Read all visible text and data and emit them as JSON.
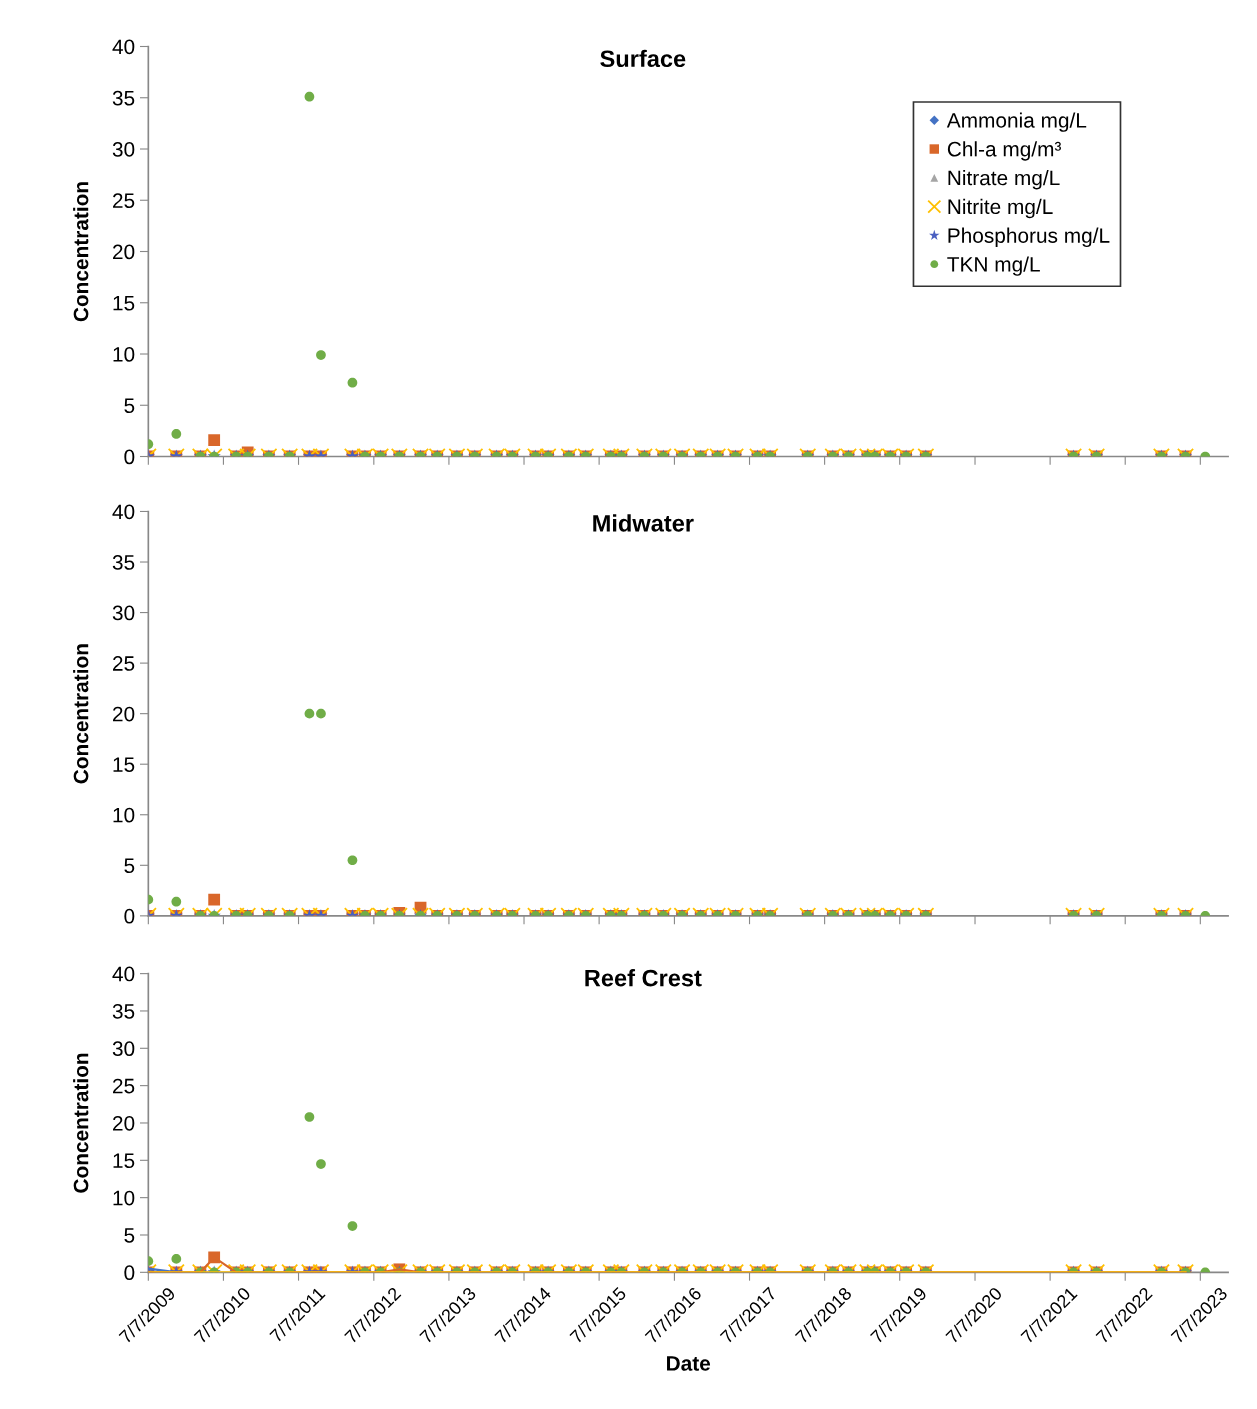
{
  "chart_data": [
    {
      "type": "scatter",
      "title": "Surface",
      "ylabel": "Concentration",
      "legend": "top right",
      "grid": false,
      "tick_labels": "y",
      "x": [
        "2009-07-07",
        "2009-11-20",
        "2010-03-17",
        "2010-05-23",
        "2010-09-07",
        "2010-11-02",
        "2011-02-13",
        "2011-05-25",
        "2011-08-29",
        "2011-10-24",
        "2012-03-25",
        "2012-05-25",
        "2012-08-09",
        "2012-11-08",
        "2013-02-19",
        "2013-05-11",
        "2013-08-15",
        "2013-11-10",
        "2014-02-24",
        "2014-05-11",
        "2014-09-01",
        "2014-11-01",
        "2015-02-10",
        "2015-05-03",
        "2015-09-02",
        "2015-10-23",
        "2016-02-12",
        "2016-05-14",
        "2016-08-13",
        "2016-11-12",
        "2017-02-02",
        "2017-04-30",
        "2017-08-15",
        "2017-10-15",
        "2018-04-16",
        "2018-08-16",
        "2018-10-31",
        "2019-01-31",
        "2019-03-08",
        "2019-05-22",
        "2019-08-07",
        "2019-11-11",
        "2021-10-29",
        "2022-02-18",
        "2022-12-30",
        "2023-04-26",
        "2023-07-31"
      ],
      "xlim": [
        "2009-07-07",
        "2023-11-19"
      ],
      "xticks": [
        {
          "value": "2009-07-07",
          "label": null
        },
        {
          "value": "2010-07-07",
          "label": null
        },
        {
          "value": "2011-07-07",
          "label": null
        },
        {
          "value": "2012-07-07",
          "label": null
        },
        {
          "value": "2013-07-07",
          "label": null
        },
        {
          "value": "2014-07-07",
          "label": null
        },
        {
          "value": "2015-07-07",
          "label": null
        },
        {
          "value": "2016-07-07",
          "label": null
        },
        {
          "value": "2017-07-07",
          "label": null
        },
        {
          "value": "2018-07-07",
          "label": null
        },
        {
          "value": "2019-07-07",
          "label": null
        },
        {
          "value": "2020-07-07",
          "label": null
        },
        {
          "value": "2021-07-07",
          "label": null
        },
        {
          "value": "2022-07-07",
          "label": null
        },
        {
          "value": "2023-07-07",
          "label": null
        }
      ],
      "ylim": [
        0,
        40
      ],
      "yticks": [
        0,
        5,
        10,
        15,
        20,
        25,
        30,
        35,
        40
      ],
      "series": [
        {
          "name": "Ammonia mg/L",
          "color": "#4472c4",
          "marker": "diamond",
          "values": [
            null,
            null,
            null,
            null,
            null,
            null,
            null,
            null,
            null,
            null,
            null,
            null,
            null,
            null,
            null,
            null,
            null,
            null,
            null,
            null,
            null,
            null,
            null,
            null,
            null,
            null,
            null,
            null,
            null,
            null,
            null,
            null,
            null,
            null,
            null,
            null,
            null,
            null,
            null,
            null,
            null,
            null,
            null,
            null,
            null,
            null,
            null
          ]
        },
        {
          "name": "Chl-a mg/m³",
          "color": "#d9672a",
          "marker": "square",
          "values": [
            0,
            0,
            0,
            1.6,
            0,
            0.4,
            0,
            0,
            0,
            0,
            0,
            0,
            0,
            0,
            0,
            0,
            0,
            0,
            0,
            0,
            0,
            0,
            0,
            0,
            0,
            0,
            0,
            0,
            0,
            0,
            0,
            0,
            0,
            0,
            0,
            0,
            0,
            0,
            0,
            0,
            0,
            0,
            0,
            0,
            0,
            0,
            null
          ]
        },
        {
          "name": "Nitrate mg/L",
          "color": "#a5a5a5",
          "marker": "triangle",
          "values": [
            null,
            null,
            null,
            null,
            null,
            null,
            null,
            null,
            null,
            null,
            null,
            null,
            null,
            null,
            null,
            null,
            null,
            null,
            null,
            null,
            null,
            null,
            null,
            null,
            null,
            null,
            null,
            null,
            null,
            null,
            null,
            null,
            null,
            null,
            null,
            null,
            null,
            null,
            null,
            null,
            null,
            null,
            null,
            null,
            null,
            null,
            null
          ]
        },
        {
          "name": "Nitrite mg/L",
          "color": "#ffc000",
          "marker": "cross",
          "values": [
            0,
            0,
            0,
            0,
            0,
            0,
            0,
            0,
            0,
            0,
            0,
            0,
            0,
            0,
            0,
            0,
            0,
            0,
            0,
            0,
            0,
            0,
            0,
            0,
            0,
            0,
            0,
            0,
            0,
            0,
            0,
            0,
            0,
            0,
            0,
            0,
            0,
            0,
            0,
            0,
            0,
            0,
            0,
            0,
            0,
            0,
            null
          ]
        },
        {
          "name": "Phosphorus mg/L",
          "color": "#4a5fc1",
          "marker": "star",
          "values": [
            0,
            0,
            0,
            0,
            0,
            0,
            0,
            0,
            0,
            0,
            0,
            0,
            0,
            0,
            0,
            0,
            0,
            0,
            0,
            0,
            0,
            0,
            0,
            0,
            0,
            0,
            0,
            0,
            0,
            0,
            0,
            0,
            0,
            0,
            0,
            0,
            0,
            0,
            0,
            0,
            0,
            0,
            0,
            0,
            0,
            0,
            null
          ]
        },
        {
          "name": "TKN mg/L",
          "color": "#70ad47",
          "marker": "circle",
          "values": [
            1.2,
            2.2,
            0,
            0,
            0,
            0,
            0,
            0,
            35.1,
            9.9,
            7.2,
            0,
            0,
            0,
            0,
            0,
            0,
            0,
            0,
            0,
            0,
            0,
            0,
            0,
            0,
            0,
            0,
            0,
            0,
            0,
            0,
            0,
            0,
            0,
            0,
            0,
            0,
            0,
            0,
            0,
            0,
            0,
            0,
            0,
            0,
            0,
            0
          ]
        }
      ]
    },
    {
      "type": "scatter",
      "title": "Midwater",
      "ylabel": "Concentration",
      "legend": false,
      "grid": false,
      "tick_labels": "y",
      "x": [
        "2009-07-07",
        "2009-11-20",
        "2010-03-17",
        "2010-05-23",
        "2010-09-07",
        "2010-11-02",
        "2011-02-13",
        "2011-05-25",
        "2011-08-29",
        "2011-10-24",
        "2012-03-25",
        "2012-05-25",
        "2012-08-09",
        "2012-11-08",
        "2013-02-19",
        "2013-05-11",
        "2013-08-15",
        "2013-11-10",
        "2014-02-24",
        "2014-05-11",
        "2014-09-01",
        "2014-11-01",
        "2015-02-10",
        "2015-05-03",
        "2015-09-02",
        "2015-10-23",
        "2016-02-12",
        "2016-05-14",
        "2016-08-13",
        "2016-11-12",
        "2017-02-02",
        "2017-04-30",
        "2017-08-15",
        "2017-10-15",
        "2018-04-16",
        "2018-08-16",
        "2018-10-31",
        "2019-01-31",
        "2019-03-08",
        "2019-05-22",
        "2019-08-07",
        "2019-11-11",
        "2021-10-29",
        "2022-02-18",
        "2022-12-30",
        "2023-04-26",
        "2023-07-31"
      ],
      "xlim": [
        "2009-07-07",
        "2023-11-19"
      ],
      "xticks": [
        {
          "value": "2009-07-07",
          "label": null
        },
        {
          "value": "2010-07-07",
          "label": null
        },
        {
          "value": "2011-07-07",
          "label": null
        },
        {
          "value": "2012-07-07",
          "label": null
        },
        {
          "value": "2013-07-07",
          "label": null
        },
        {
          "value": "2014-07-07",
          "label": null
        },
        {
          "value": "2015-07-07",
          "label": null
        },
        {
          "value": "2016-07-07",
          "label": null
        },
        {
          "value": "2017-07-07",
          "label": null
        },
        {
          "value": "2018-07-07",
          "label": null
        },
        {
          "value": "2019-07-07",
          "label": null
        },
        {
          "value": "2020-07-07",
          "label": null
        },
        {
          "value": "2021-07-07",
          "label": null
        },
        {
          "value": "2022-07-07",
          "label": null
        },
        {
          "value": "2023-07-07",
          "label": null
        }
      ],
      "ylim": [
        0,
        40
      ],
      "yticks": [
        0,
        5,
        10,
        15,
        20,
        25,
        30,
        35,
        40
      ],
      "series": [
        {
          "color": "#d9672a",
          "marker": "square",
          "values": [
            0,
            0,
            0,
            1.6,
            0,
            0,
            0,
            0,
            0,
            0,
            0,
            0,
            0,
            0.3,
            0.8,
            0,
            0,
            0,
            0,
            0,
            0,
            0,
            0,
            0,
            0,
            0,
            0,
            0,
            0,
            0,
            0,
            0,
            0,
            0,
            0,
            0,
            0,
            0,
            0,
            0,
            0,
            0,
            0,
            0,
            0,
            0,
            null
          ]
        },
        {
          "color": "#ffc000",
          "marker": "cross",
          "values": [
            0,
            0,
            0,
            0,
            0,
            0,
            0,
            0,
            0,
            0,
            0,
            0,
            0,
            0,
            0,
            0,
            0,
            0,
            0,
            0,
            0,
            0,
            0,
            0,
            0,
            0,
            0,
            0,
            0,
            0,
            0,
            0,
            0,
            0,
            0,
            0,
            0,
            0,
            0,
            0,
            0,
            0,
            0,
            0,
            0,
            0,
            null
          ]
        },
        {
          "color": "#4a5fc1",
          "marker": "star",
          "values": [
            0,
            0,
            0,
            0,
            0,
            0,
            0,
            0,
            0,
            0,
            0,
            0,
            0,
            0,
            0,
            0,
            0,
            0,
            0,
            0,
            0,
            0,
            0,
            0,
            0,
            0,
            0,
            0,
            0,
            0,
            0,
            0,
            0,
            0,
            0,
            0,
            0,
            0,
            0,
            0,
            0,
            0,
            0,
            0,
            0,
            0,
            null
          ]
        },
        {
          "color": "#70ad47",
          "marker": "circle",
          "values": [
            1.6,
            1.4,
            0,
            0,
            0,
            0,
            0,
            0,
            20,
            20,
            5.5,
            0,
            0,
            0,
            0,
            0,
            0,
            0,
            0,
            0,
            0,
            0,
            0,
            0,
            0,
            0,
            0,
            0,
            0,
            0,
            0,
            0,
            0,
            0,
            0,
            0,
            0,
            0,
            0,
            0,
            0,
            0,
            0,
            0,
            0,
            0,
            0
          ]
        }
      ]
    },
    {
      "type": "scatter",
      "title": "Reef Crest",
      "ylabel": "Concentration",
      "xlabel": "Date",
      "legend": false,
      "grid": false,
      "x": [
        "2009-07-07",
        "2009-11-20",
        "2010-03-17",
        "2010-05-23",
        "2010-09-07",
        "2010-11-02",
        "2011-02-13",
        "2011-05-25",
        "2011-08-29",
        "2011-10-24",
        "2012-03-25",
        "2012-05-25",
        "2012-08-09",
        "2012-11-08",
        "2013-02-19",
        "2013-05-11",
        "2013-08-15",
        "2013-11-10",
        "2014-02-24",
        "2014-05-11",
        "2014-09-01",
        "2014-11-01",
        "2015-02-10",
        "2015-05-03",
        "2015-09-02",
        "2015-10-23",
        "2016-02-12",
        "2016-05-14",
        "2016-08-13",
        "2016-11-12",
        "2017-02-02",
        "2017-04-30",
        "2017-08-15",
        "2017-10-15",
        "2018-04-16",
        "2018-08-16",
        "2018-10-31",
        "2019-01-31",
        "2019-03-08",
        "2019-05-22",
        "2019-08-07",
        "2019-11-11",
        "2021-10-29",
        "2022-02-18",
        "2022-12-30",
        "2023-04-26",
        "2023-07-31"
      ],
      "xlim": [
        "2009-07-07",
        "2023-11-19"
      ],
      "xticks": [
        {
          "value": "2009-07-07",
          "label": "7/7/2009"
        },
        {
          "value": "2010-07-07",
          "label": "7/7/2010"
        },
        {
          "value": "2011-07-07",
          "label": "7/7/2011"
        },
        {
          "value": "2012-07-07",
          "label": "7/7/2012"
        },
        {
          "value": "2013-07-07",
          "label": "7/7/2013"
        },
        {
          "value": "2014-07-07",
          "label": "7/7/2014"
        },
        {
          "value": "2015-07-07",
          "label": "7/7/2015"
        },
        {
          "value": "2016-07-07",
          "label": "7/7/2016"
        },
        {
          "value": "2017-07-07",
          "label": "7/7/2017"
        },
        {
          "value": "2018-07-07",
          "label": "7/7/2018"
        },
        {
          "value": "2019-07-07",
          "label": "7/7/2019"
        },
        {
          "value": "2020-07-07",
          "label": "7/7/2020"
        },
        {
          "value": "2021-07-07",
          "label": "7/7/2021"
        },
        {
          "value": "2022-07-07",
          "label": "7/7/2022"
        },
        {
          "value": "2023-07-07",
          "label": "7/7/2023"
        }
      ],
      "ylim": [
        0,
        40
      ],
      "yticks": [
        0,
        5,
        10,
        15,
        20,
        25,
        30,
        35,
        40
      ],
      "series": [
        {
          "type": "line",
          "color": "#4472c4",
          "marker": "none",
          "values": [
            0.5,
            0,
            null,
            null,
            null,
            null,
            null,
            null,
            null,
            null,
            null,
            null,
            null,
            null,
            null,
            null,
            null,
            null,
            null,
            null,
            null,
            null,
            null,
            null,
            null,
            null,
            null,
            null,
            null,
            null,
            null,
            null,
            null,
            null,
            null,
            null,
            null,
            null,
            null,
            null,
            null,
            null,
            null,
            null,
            null,
            null,
            null
          ]
        },
        {
          "type": "line",
          "color": "#d9672a",
          "marker": "square",
          "values": [
            0,
            0,
            0,
            2.0,
            0,
            0,
            0,
            0,
            0,
            0,
            0,
            0,
            0,
            0.4,
            0,
            0,
            0,
            0,
            0,
            0,
            0,
            0,
            0,
            0,
            0,
            0,
            0,
            0,
            0,
            0,
            0,
            0,
            0,
            0,
            0,
            0,
            0,
            0,
            0,
            0,
            0,
            0,
            0,
            0,
            0,
            0,
            null
          ]
        },
        {
          "type": "line",
          "color": "#ffc000",
          "marker": "cross",
          "values": [
            0,
            0,
            0,
            0,
            0,
            0,
            0,
            0,
            0,
            0,
            0,
            0,
            0,
            0,
            0,
            0,
            0,
            0,
            0,
            0,
            0,
            0,
            0,
            0,
            0,
            0,
            0,
            0,
            0,
            0,
            0,
            0,
            0,
            0,
            0,
            0,
            0,
            0,
            0,
            0,
            0,
            0,
            0,
            0,
            0,
            0,
            null
          ]
        },
        {
          "color": "#4a5fc1",
          "marker": "star",
          "values": [
            0,
            0,
            0,
            0,
            0,
            0,
            0,
            0,
            0,
            0,
            0,
            0,
            0,
            0,
            0,
            0,
            0,
            0,
            0,
            0,
            0,
            0,
            0,
            0,
            0,
            0,
            0,
            0,
            0,
            0,
            0,
            0,
            0,
            0,
            0,
            0,
            0,
            0,
            0,
            0,
            0,
            0,
            0,
            0,
            0,
            0,
            null
          ]
        },
        {
          "color": "#70ad47",
          "marker": "circle",
          "values": [
            1.5,
            1.8,
            0,
            0,
            0,
            0,
            0,
            0,
            20.8,
            14.5,
            6.2,
            0,
            0,
            0,
            0,
            0,
            0,
            0,
            0,
            0,
            0,
            0,
            0,
            0,
            0,
            0,
            0,
            0,
            0,
            0,
            0,
            0,
            0,
            0,
            0,
            0,
            0,
            0,
            0,
            0,
            0,
            0,
            0,
            0,
            0,
            0,
            0
          ]
        }
      ]
    }
  ]
}
